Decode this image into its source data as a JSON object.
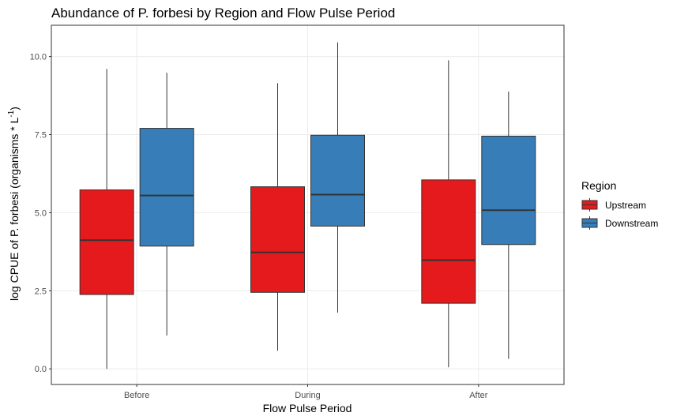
{
  "chart_data": {
    "type": "boxplot",
    "title": "Abundance of P. forbesi by Region and Flow Pulse Period",
    "xlabel": "Flow Pulse Period",
    "ylabel": {
      "main": "log CPUE of P. forbesi  (organisms * L",
      "superscript": "-1",
      "close": ")"
    },
    "categories": [
      "Before",
      "During",
      "After"
    ],
    "ylim": [
      -0.5,
      11.0
    ],
    "yticks": [
      0.0,
      2.5,
      5.0,
      7.5,
      10.0
    ],
    "ytick_labels": [
      "0.0",
      "2.5",
      "5.0",
      "7.5",
      "10.0"
    ],
    "grid": true,
    "legend": {
      "title": "Region",
      "position": "right"
    },
    "series": [
      {
        "name": "Upstream",
        "color": "#e41a1c",
        "boxes": [
          {
            "min": 0.0,
            "q1": 2.38,
            "median": 4.12,
            "q3": 5.73,
            "max": 9.6
          },
          {
            "min": 0.58,
            "q1": 2.45,
            "median": 3.73,
            "q3": 5.83,
            "max": 9.15
          },
          {
            "min": 0.05,
            "q1": 2.1,
            "median": 3.48,
            "q3": 6.05,
            "max": 9.88
          }
        ]
      },
      {
        "name": "Downstream",
        "color": "#377eb8",
        "boxes": [
          {
            "min": 1.07,
            "q1": 3.93,
            "median": 5.55,
            "q3": 7.7,
            "max": 9.48
          },
          {
            "min": 1.8,
            "q1": 4.57,
            "median": 5.58,
            "q3": 7.48,
            "max": 10.45
          },
          {
            "min": 0.32,
            "q1": 3.98,
            "median": 5.08,
            "q3": 7.45,
            "max": 8.88
          }
        ]
      }
    ]
  }
}
